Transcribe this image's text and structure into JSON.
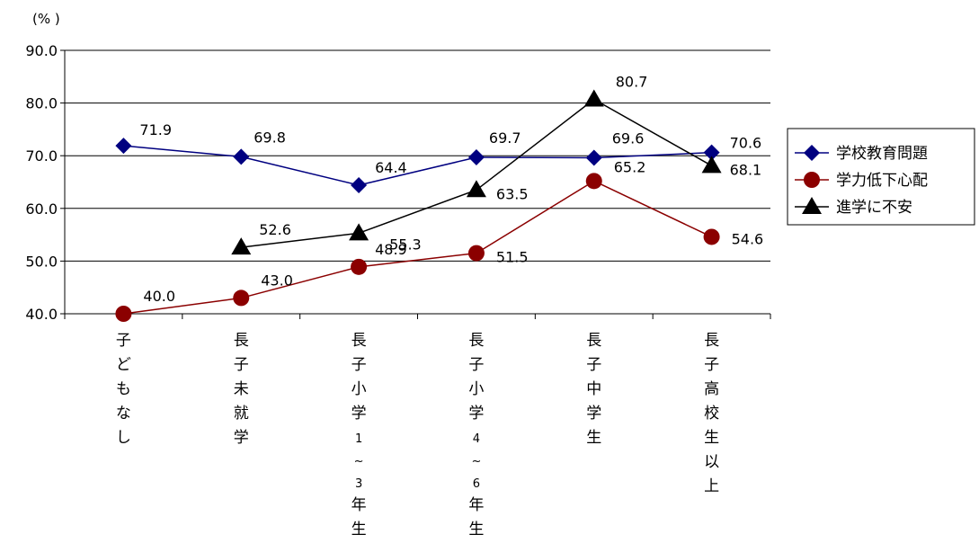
{
  "chart_data": {
    "type": "line",
    "unit": "(% )",
    "categories": [
      "子どもなし",
      "長子未就学",
      "長子小学１～３年生",
      "長子小学４～６年生",
      "長子中学生",
      "長子高校生以上"
    ],
    "category_lines": [
      [
        "子",
        "ど",
        "も",
        "な",
        "し"
      ],
      [
        "長",
        "子",
        "未",
        "就",
        "学"
      ],
      [
        "長",
        "子",
        "小",
        "学",
        "1",
        "~",
        "3",
        "年",
        "生"
      ],
      [
        "長",
        "子",
        "小",
        "学",
        "4",
        "~",
        "6",
        "年",
        "生"
      ],
      [
        "長",
        "子",
        "中",
        "学",
        "生"
      ],
      [
        "長",
        "子",
        "高",
        "校",
        "生",
        "以",
        "上"
      ]
    ],
    "ylim": [
      40,
      90
    ],
    "yticks": [
      "40.0",
      "50.0",
      "60.0",
      "70.0",
      "80.0",
      "90.0"
    ],
    "grid": true,
    "legend_position": "right",
    "series": [
      {
        "name": "学校教育問題",
        "color": "#000080",
        "marker": "diamond",
        "values": [
          71.9,
          69.8,
          64.4,
          69.7,
          69.6,
          70.6
        ],
        "labels": [
          "71.9",
          "69.8",
          "64.4",
          "69.7",
          "69.6",
          "70.6"
        ]
      },
      {
        "name": "学力低下心配",
        "color": "#8b0000",
        "marker": "circle",
        "values": [
          40.0,
          43.0,
          48.9,
          51.5,
          65.2,
          54.6
        ],
        "labels": [
          "40.0",
          "43.0",
          "48.9",
          "51.5",
          "65.2",
          "54.6"
        ]
      },
      {
        "name": "進学に不安",
        "color": "#000000",
        "marker": "triangle",
        "values": [
          null,
          52.6,
          55.3,
          63.5,
          80.7,
          68.1
        ],
        "labels": [
          null,
          "52.6",
          "55.3",
          "63.5",
          "80.7",
          "68.1"
        ]
      }
    ]
  }
}
